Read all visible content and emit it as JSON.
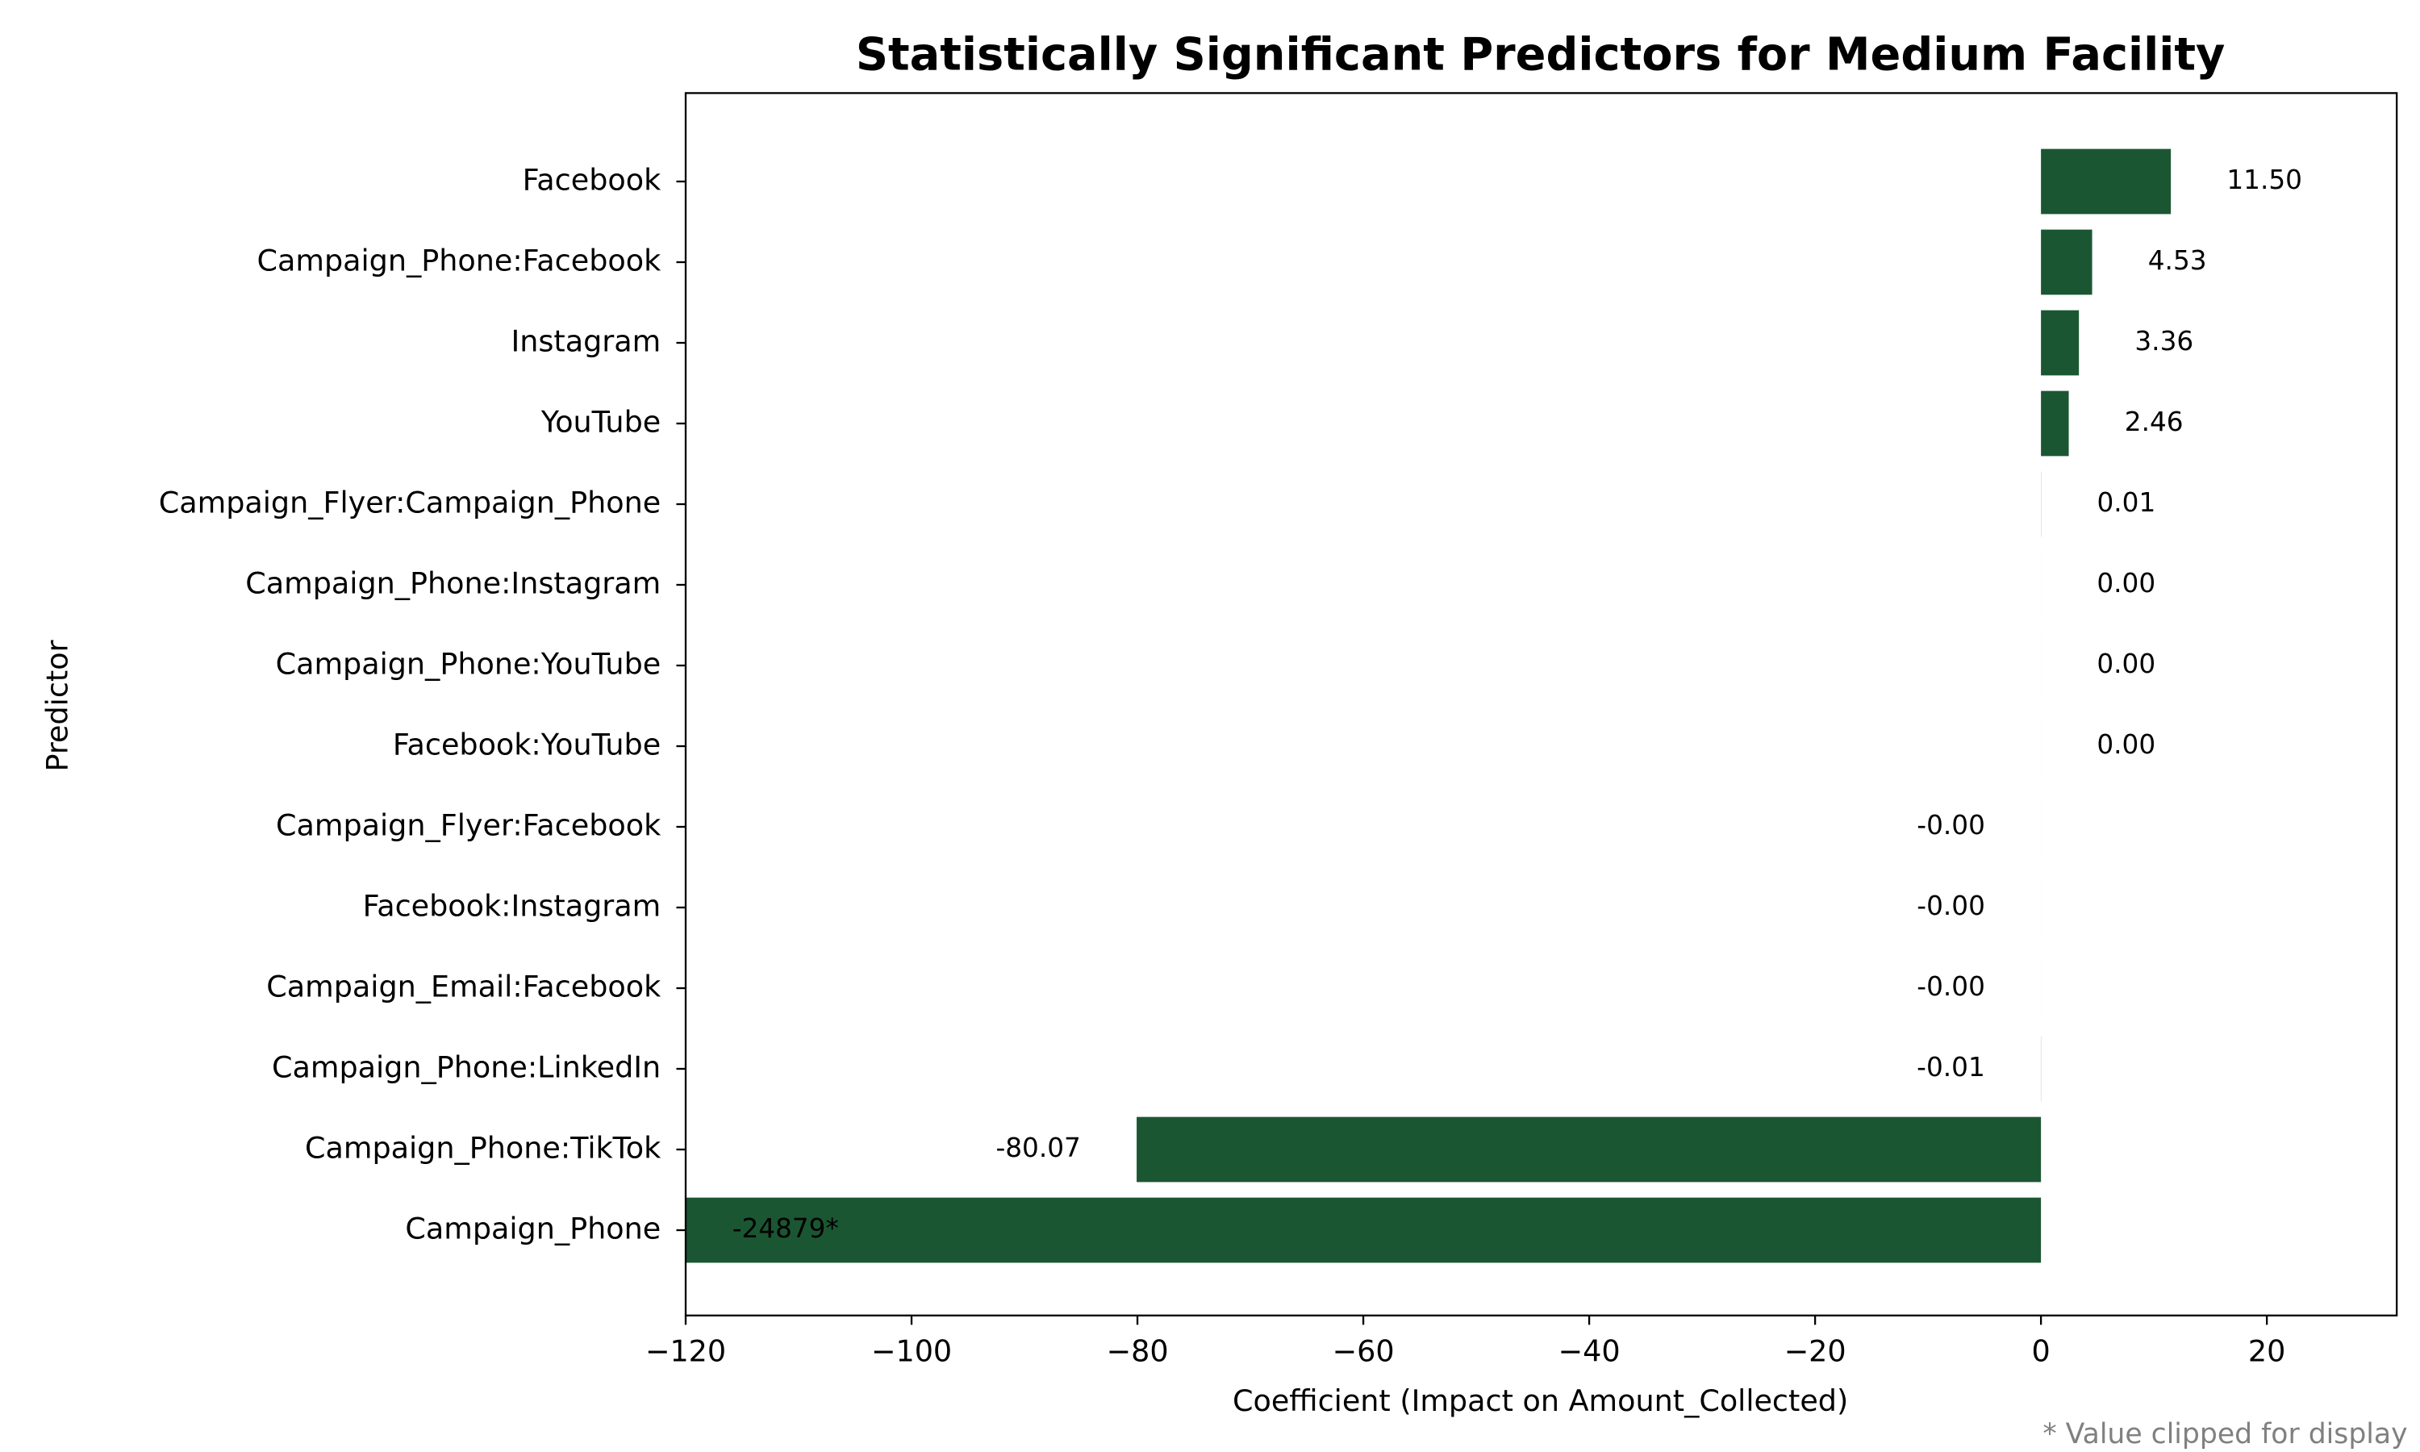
{
  "chart_data": {
    "type": "barh",
    "title": "Statistically Significant Predictors for Medium Facility",
    "xlabel": "Coefficient (Impact on Amount_Collected)",
    "ylabel": "Predictor",
    "note": "* Value clipped for display",
    "categories": [
      "Facebook",
      "Campaign_Phone:Facebook",
      "Instagram",
      "YouTube",
      "Campaign_Flyer:Campaign_Phone",
      "Campaign_Phone:Instagram",
      "Campaign_Phone:YouTube",
      "Facebook:YouTube",
      "Campaign_Flyer:Facebook",
      "Facebook:Instagram",
      "Campaign_Email:Facebook",
      "Campaign_Phone:LinkedIn",
      "Campaign_Phone:TikTok",
      "Campaign_Phone"
    ],
    "values": [
      11.5,
      4.53,
      3.36,
      2.46,
      0.01,
      0.001,
      0.001,
      0.001,
      -0.001,
      -0.001,
      -0.001,
      -0.01,
      -80.07,
      -24879
    ],
    "value_labels": [
      "11.50",
      "4.53",
      "3.36",
      "2.46",
      "0.01",
      "0.00",
      "0.00",
      "0.00",
      "-0.00",
      "-0.00",
      "-0.00",
      "-0.01",
      "-80.07",
      "-24879*"
    ],
    "color": "#1b5632",
    "xlim": [
      -120,
      31.5
    ],
    "xticks": [
      {
        "value": -120,
        "label": "−120"
      },
      {
        "value": -100,
        "label": "−100"
      },
      {
        "value": -80,
        "label": "−80"
      },
      {
        "value": -60,
        "label": "−60"
      },
      {
        "value": -40,
        "label": "−40"
      },
      {
        "value": -20,
        "label": "−20"
      },
      0,
      20
    ],
    "grid": false
  }
}
